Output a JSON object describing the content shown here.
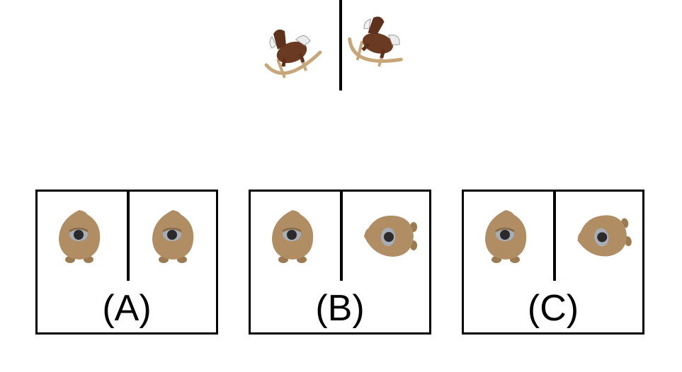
{
  "reference": {
    "left_image": "rocking-horse",
    "right_image": "rocking-horse-rotated"
  },
  "options": [
    {
      "label": "(A)",
      "left_image": "tan-one-eyed-creature",
      "right_image": "tan-one-eyed-creature"
    },
    {
      "label": "(B)",
      "left_image": "tan-one-eyed-creature",
      "right_image": "tan-one-eyed-creature-rotated"
    },
    {
      "label": "(C)",
      "left_image": "tan-one-eyed-creature",
      "right_image": "tan-one-eyed-creature-rotated"
    }
  ],
  "colors": {
    "creature_body": "#b08d62",
    "creature_eye_ring": "#a7aeb8",
    "horse_body": "#6b3a22",
    "rocker_wood": "#c7a77a"
  }
}
